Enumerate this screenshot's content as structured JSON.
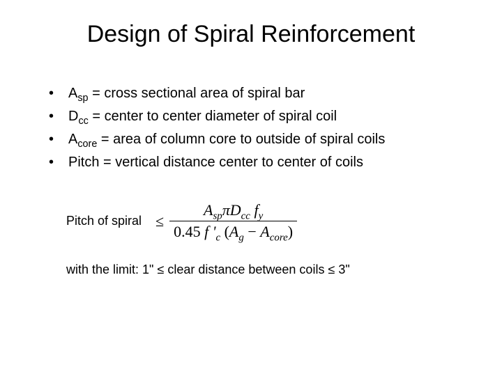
{
  "title": "Design of Spiral Reinforcement",
  "bullets": [
    {
      "symbol": "A",
      "subscript": "sp",
      "definition": " = cross sectional area of spiral bar"
    },
    {
      "symbol": "D",
      "subscript": "cc",
      "definition": " = center to center diameter of spiral coil"
    },
    {
      "symbol": "A",
      "subscript": "core",
      "definition": " = area of column core to outside of spiral coils"
    },
    {
      "symbol": "Pitch",
      "subscript": "",
      "definition": " = vertical distance center to center of coils"
    }
  ],
  "formula": {
    "label": "Pitch of spiral",
    "leq_symbol": "≤",
    "numerator": {
      "A": "A",
      "A_sub": "sp",
      "pi": "π",
      "D": "D",
      "D_sub": "cc",
      "f": "f",
      "f_sub": "y"
    },
    "denominator": {
      "coef": "0.45",
      "fprime": "f '",
      "fprime_sub": "c",
      "open": " (",
      "Ag": "A",
      "Ag_sub": "g",
      "minus": " − ",
      "Acore": "A",
      "Acore_sub": "core",
      "close": ")"
    }
  },
  "limit": {
    "prefix": "with the limit: ",
    "lower": "1\"",
    "mid": " ≤ clear distance between coils ≤ ",
    "upper": "3\""
  }
}
